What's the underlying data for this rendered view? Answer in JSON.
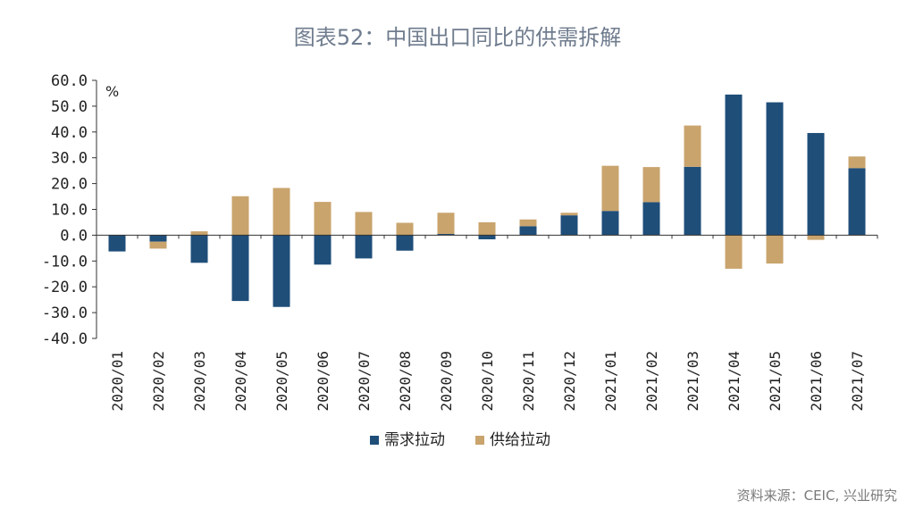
{
  "title": "图表52：中国出口同比的供需拆解",
  "source": "资料来源：CEIC, 兴业研究",
  "chart_data": {
    "type": "bar",
    "stacked": true,
    "title": "图表52：中国出口同比的供需拆解",
    "ylabel": "%",
    "xlabel": "",
    "ylim": [
      -40,
      60
    ],
    "yticks": [
      "-40.0",
      "-30.0",
      "-20.0",
      "-10.0",
      "0.0",
      "10.0",
      "20.0",
      "30.0",
      "40.0",
      "50.0",
      "60.0"
    ],
    "ytick_values": [
      -40,
      -30,
      -20,
      -10,
      0,
      10,
      20,
      30,
      40,
      50,
      60
    ],
    "grid": false,
    "legend_position": "bottom-center",
    "categories": [
      "2020/01",
      "2020/02",
      "2020/03",
      "2020/04",
      "2020/05",
      "2020/06",
      "2020/07",
      "2020/08",
      "2020/09",
      "2020/10",
      "2020/11",
      "2020/12",
      "2021/01",
      "2021/02",
      "2021/03",
      "2021/04",
      "2021/05",
      "2021/06",
      "2021/07"
    ],
    "series": [
      {
        "name": "需求拉动",
        "color": "#1f4e79",
        "values": [
          -6.3,
          -2.5,
          -10.7,
          -25.5,
          -27.8,
          -11.4,
          -9.0,
          -6.0,
          0.5,
          -1.6,
          3.5,
          7.7,
          9.4,
          12.8,
          26.5,
          54.5,
          51.5,
          39.6,
          26.0
        ]
      },
      {
        "name": "供给拉动",
        "color": "#c9a46d",
        "values": [
          0.0,
          -2.7,
          1.5,
          15.1,
          18.3,
          12.9,
          9.0,
          4.8,
          8.2,
          5.0,
          2.6,
          1.0,
          17.5,
          13.6,
          16.0,
          -13.0,
          -11.0,
          -1.8,
          4.5
        ]
      }
    ]
  }
}
